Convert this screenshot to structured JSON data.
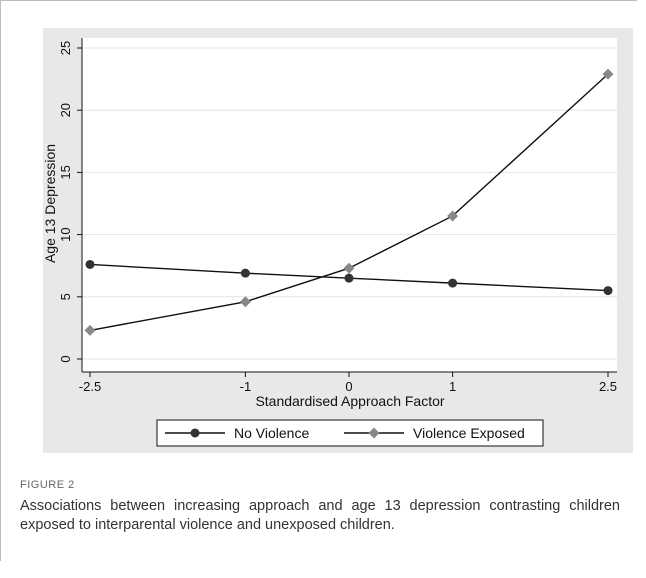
{
  "chart_data": {
    "type": "line",
    "x": [
      -2.5,
      -1,
      0,
      1,
      2.5
    ],
    "series": [
      {
        "name": "No Violence",
        "values": [
          7.6,
          6.9,
          6.5,
          6.1,
          5.5
        ],
        "color": "#333333",
        "marker": "circle"
      },
      {
        "name": "Violence Exposed",
        "values": [
          2.3,
          4.6,
          7.3,
          11.5,
          22.9
        ],
        "color": "#888888",
        "marker": "diamond"
      }
    ],
    "xlabel": "Standardised Approach Factor",
    "ylabel": "Age 13 Depression",
    "x_ticks": [
      "-2.5",
      "-1",
      "0",
      "1",
      "2.5"
    ],
    "y_ticks": [
      "0",
      "5",
      "10",
      "15",
      "20",
      "25"
    ],
    "xlim": [
      -2.5,
      2.5
    ],
    "ylim": [
      0,
      25
    ],
    "legend_position": "bottom",
    "grid": true
  },
  "figure": {
    "label": "FIGURE 2",
    "caption": "Associations between increasing approach and age 13 depression contrasting children exposed to interparental violence and unexposed children."
  }
}
